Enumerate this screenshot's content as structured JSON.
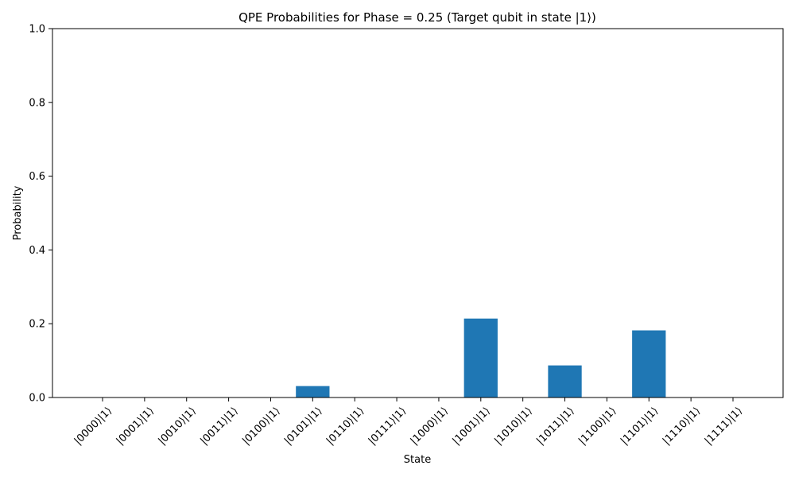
{
  "chart_data": {
    "type": "bar",
    "title": "QPE Probabilities for Phase = 0.25 (Target qubit in state |1⟩)",
    "xlabel": "State",
    "ylabel": "Probability",
    "ylim": [
      0,
      1
    ],
    "yticks": [
      "0.0",
      "0.2",
      "0.4",
      "0.6",
      "0.8",
      "1.0"
    ],
    "grid": false,
    "bar_color": "#1f77b4",
    "categories": [
      "|0000⟩|1⟩",
      "|0001⟩|1⟩",
      "|0010⟩|1⟩",
      "|0011⟩|1⟩",
      "|0100⟩|1⟩",
      "|0101⟩|1⟩",
      "|0110⟩|1⟩",
      "|0111⟩|1⟩",
      "|1000⟩|1⟩",
      "|1001⟩|1⟩",
      "|1010⟩|1⟩",
      "|1011⟩|1⟩",
      "|1100⟩|1⟩",
      "|1101⟩|1⟩",
      "|1110⟩|1⟩",
      "|1111⟩|1⟩"
    ],
    "values": [
      0,
      0,
      0,
      0,
      0,
      0.031,
      0,
      0,
      0,
      0.214,
      0,
      0.087,
      0,
      0.182,
      0,
      0
    ]
  }
}
